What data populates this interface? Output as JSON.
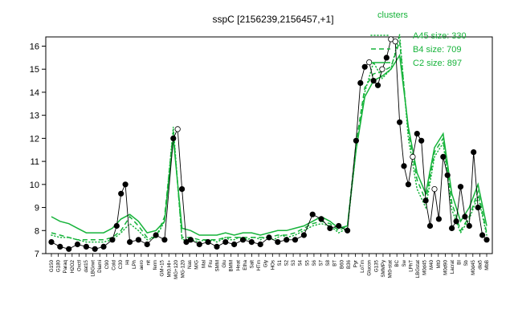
{
  "chart_data": {
    "type": "line",
    "title": "sspC [2156239,2156457,+1]",
    "xlabel": "",
    "ylabel": "",
    "ylim": [
      7,
      16.4
    ],
    "yticks": [
      7,
      8,
      9,
      10,
      11,
      12,
      13,
      14,
      15,
      16
    ],
    "grid": false,
    "legend": {
      "title": "clusters",
      "position": "top-right",
      "color": "#16b33a",
      "entries": [
        {
          "label": "A45 size: 330",
          "style": "dotted"
        },
        {
          "label": "B4 size: 709",
          "style": "dashed"
        },
        {
          "label": "C2 size: 897",
          "style": "solid"
        }
      ]
    },
    "x_tick_labels": [
      "G150",
      "G180",
      "Paraq",
      "H2O2",
      "Oxctl",
      "dat15",
      "LBGrwt",
      "Diami",
      "C90",
      "Cold",
      "C30",
      "Hi",
      "LPh",
      "aero",
      "nit",
      "ferm",
      "GM+15",
      "Mt0.Hl+",
      "MG+120",
      "MG-120",
      "Nas",
      "M/G",
      "Mal",
      "Fru",
      "SMM",
      "Glu",
      "BMM",
      "Heat",
      "Etha",
      "Salt",
      "HTm",
      "Gly",
      "HOs",
      "S1",
      "S2",
      "S3",
      "S4",
      "S5",
      "S6",
      "S7",
      "S8",
      "BT",
      "B60",
      "B36",
      "Pyr",
      "LoTm",
      "Glucon",
      "G135",
      "SMMPy",
      "Mt0-stat",
      "BC",
      "Sw",
      "LPhT",
      "LBGstat",
      "M0d45",
      "M40",
      "Mt0",
      "M0d90",
      "Lacrat",
      "BI",
      "Sb",
      "M0d45",
      "dia5",
      "MbB"
    ],
    "series": [
      {
        "name": "A45 size: 330",
        "style": "dotted",
        "color": "#16b33a",
        "x": [
          0,
          2,
          4,
          6,
          8,
          10,
          12,
          14,
          16,
          18,
          20,
          22,
          24,
          26,
          28,
          30,
          32,
          34,
          35,
          36,
          37,
          38,
          39,
          40,
          41,
          42,
          43,
          44,
          45,
          46,
          47,
          48,
          49,
          50,
          51,
          52,
          53,
          54,
          56,
          58,
          60,
          62,
          64,
          66,
          68,
          70,
          72,
          74,
          76,
          78,
          80,
          82,
          84,
          86,
          88,
          90,
          92,
          94,
          96,
          98,
          100
        ],
        "y": [
          7.8,
          7.7,
          7.7,
          7.6,
          7.5,
          7.5,
          7.5,
          7.6,
          7.9,
          8.3,
          8.0,
          7.6,
          7.7,
          8.4,
          12.5,
          7.6,
          7.6,
          7.5,
          7.6,
          7.5,
          7.6,
          7.5,
          7.6,
          7.7,
          7.6,
          7.6,
          7.7,
          7.7,
          7.6,
          7.7,
          7.7,
          7.6,
          7.7,
          7.7,
          7.6,
          7.7,
          7.8,
          7.7,
          7.8,
          8.0,
          8.2,
          8.3,
          8.2,
          7.9,
          8.1,
          11.5,
          14.0,
          15.3,
          14.6,
          15.0,
          16.5,
          12.0,
          9.8,
          9.0,
          11.2,
          11.8,
          8.9,
          7.9,
          8.5,
          9.5,
          7.8
        ]
      },
      {
        "name": "B4 size: 709",
        "style": "dashed",
        "color": "#16b33a",
        "x": [
          0,
          2,
          4,
          6,
          8,
          10,
          12,
          14,
          16,
          18,
          20,
          22,
          24,
          26,
          28,
          30,
          32,
          34,
          36,
          38,
          40,
          42,
          44,
          46,
          48,
          50,
          52,
          54,
          56,
          58,
          60,
          62,
          64,
          66,
          68,
          70,
          72,
          74,
          76,
          78,
          80,
          82,
          84,
          86,
          88,
          90,
          92,
          94,
          96,
          98,
          100
        ],
        "y": [
          7.9,
          7.8,
          7.7,
          7.6,
          7.6,
          7.6,
          7.6,
          7.7,
          8.0,
          8.6,
          8.2,
          7.7,
          7.7,
          8.6,
          12.3,
          7.7,
          7.7,
          7.6,
          7.6,
          7.6,
          7.7,
          7.7,
          7.7,
          7.7,
          7.7,
          7.7,
          7.8,
          7.8,
          7.9,
          8.1,
          8.3,
          8.4,
          8.3,
          8.0,
          8.2,
          11.8,
          14.2,
          14.8,
          14.9,
          15.1,
          16.2,
          12.3,
          10.2,
          9.3,
          11.4,
          12.0,
          9.2,
          8.0,
          8.6,
          9.7,
          7.9
        ]
      },
      {
        "name": "C2 size: 897",
        "style": "solid",
        "color": "#16b33a",
        "x": [
          0,
          2,
          4,
          6,
          8,
          10,
          12,
          14,
          16,
          18,
          20,
          22,
          24,
          26,
          28,
          30,
          32,
          34,
          36,
          38,
          40,
          42,
          44,
          46,
          48,
          50,
          52,
          54,
          56,
          58,
          60,
          62,
          64,
          66,
          68,
          70,
          72,
          74,
          76,
          78,
          80,
          82,
          84,
          86,
          88,
          90,
          92,
          94,
          96,
          98,
          100
        ],
        "y": [
          8.6,
          8.4,
          8.3,
          8.1,
          7.9,
          7.9,
          7.9,
          8.1,
          8.5,
          8.7,
          8.4,
          7.9,
          8.0,
          8.4,
          12.0,
          8.1,
          8.0,
          7.8,
          7.8,
          7.8,
          7.9,
          7.8,
          7.9,
          7.9,
          7.8,
          7.9,
          8.0,
          8.0,
          8.1,
          8.2,
          8.4,
          8.6,
          8.4,
          8.1,
          8.2,
          11.5,
          13.8,
          14.5,
          14.7,
          15.0,
          15.6,
          12.5,
          10.5,
          9.6,
          11.6,
          12.2,
          9.6,
          8.4,
          9.0,
          10.0,
          8.2
        ]
      },
      {
        "name": "",
        "style": "points",
        "color": "#000000",
        "x": [
          0,
          2,
          4,
          6,
          8,
          10,
          12,
          14,
          15,
          16,
          17,
          18,
          20,
          22,
          24,
          26,
          28,
          29,
          30,
          31,
          32,
          34,
          36,
          38,
          40,
          42,
          44,
          46,
          48,
          50,
          52,
          54,
          56,
          58,
          60,
          62,
          64,
          66,
          68,
          70,
          71,
          72,
          73,
          74,
          75,
          76,
          77,
          78,
          79,
          80,
          81,
          82,
          83,
          84,
          85,
          86,
          87,
          88,
          89,
          90,
          91,
          92,
          93,
          94,
          95,
          96,
          97,
          98,
          99,
          100
        ],
        "y": [
          7.5,
          7.3,
          7.2,
          7.4,
          7.3,
          7.2,
          7.3,
          7.6,
          8.2,
          9.6,
          10.0,
          7.5,
          7.6,
          7.4,
          7.8,
          7.6,
          12.0,
          12.4,
          9.8,
          7.5,
          7.6,
          7.4,
          7.5,
          7.3,
          7.5,
          7.4,
          7.6,
          7.5,
          7.4,
          7.7,
          7.5,
          7.6,
          7.6,
          7.8,
          8.7,
          8.5,
          8.1,
          8.2,
          8.0,
          11.9,
          14.4,
          15.1,
          15.3,
          14.5,
          14.3,
          15.0,
          15.5,
          16.3,
          16.2,
          12.7,
          10.8,
          10.0,
          11.2,
          12.2,
          11.9,
          9.3,
          8.2,
          9.8,
          8.5,
          11.2,
          10.4,
          8.1,
          8.4,
          9.9,
          8.6,
          8.2,
          11.4,
          9.0,
          7.8,
          7.6
        ]
      }
    ]
  }
}
